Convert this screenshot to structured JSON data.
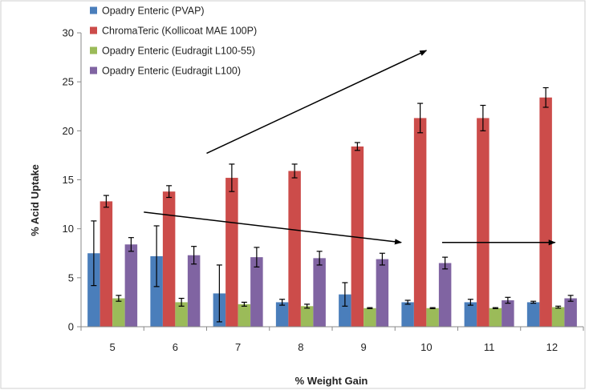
{
  "chart_data": {
    "type": "bar",
    "xlabel": "% Weight Gain",
    "ylabel": "% Acid Uptake",
    "ylim": [
      0,
      30
    ],
    "yticks": [
      0,
      5,
      10,
      15,
      20,
      25,
      30
    ],
    "categories": [
      "5",
      "6",
      "7",
      "8",
      "9",
      "10",
      "11",
      "12"
    ],
    "legend_position": "top-left",
    "grid": false,
    "series": [
      {
        "name": "Opadry Enteric (PVAP)",
        "color": "#4a7ebb",
        "values": [
          7.5,
          7.2,
          3.4,
          2.5,
          3.3,
          2.5,
          2.5,
          2.5
        ],
        "errors": [
          3.3,
          3.1,
          2.9,
          0.3,
          1.2,
          0.2,
          0.3,
          0.1
        ]
      },
      {
        "name": "ChromaTeric (Kollicoat MAE 100P)",
        "color": "#cc4c4a",
        "values": [
          12.8,
          13.8,
          15.2,
          15.9,
          18.4,
          21.3,
          21.3,
          23.4
        ],
        "errors": [
          0.6,
          0.6,
          1.4,
          0.7,
          0.4,
          1.5,
          1.3,
          1.0
        ]
      },
      {
        "name": "Opadry Enteric (Eudragit L100-55)",
        "color": "#9bbb59",
        "values": [
          2.9,
          2.5,
          2.3,
          2.1,
          1.9,
          1.9,
          1.9,
          2.0
        ],
        "errors": [
          0.3,
          0.4,
          0.2,
          0.2,
          0.05,
          0.05,
          0.05,
          0.1
        ]
      },
      {
        "name": "Opadry Enteric (Eudragit L100)",
        "color": "#8064a2",
        "values": [
          8.4,
          7.3,
          7.1,
          7.0,
          6.9,
          6.5,
          2.7,
          2.9
        ],
        "errors": [
          0.7,
          0.9,
          1.0,
          0.7,
          0.6,
          0.6,
          0.3,
          0.3
        ]
      }
    ],
    "annotations": [
      {
        "type": "arrow",
        "from": {
          "x": 2.0,
          "y": 17.7
        },
        "to": {
          "x": 5.5,
          "y": 28.2
        }
      },
      {
        "type": "arrow",
        "from": {
          "x": 1.0,
          "y": 11.7
        },
        "to": {
          "x": 5.1,
          "y": 8.6
        }
      },
      {
        "type": "arrow",
        "from": {
          "x": 5.75,
          "y": 8.6
        },
        "to": {
          "x": 7.55,
          "y": 8.6
        }
      }
    ]
  }
}
